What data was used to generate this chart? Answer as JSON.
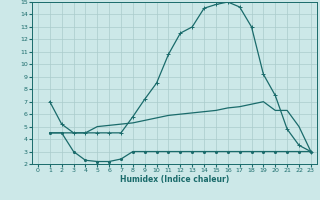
{
  "background_color": "#cce8e8",
  "grid_color": "#aacccc",
  "line_color": "#1a6b6b",
  "xlabel": "Humidex (Indice chaleur)",
  "xlim": [
    -0.5,
    23.5
  ],
  "ylim": [
    2,
    15
  ],
  "xticks": [
    0,
    1,
    2,
    3,
    4,
    5,
    6,
    7,
    8,
    9,
    10,
    11,
    12,
    13,
    14,
    15,
    16,
    17,
    18,
    19,
    20,
    21,
    22,
    23
  ],
  "yticks": [
    2,
    3,
    4,
    5,
    6,
    7,
    8,
    9,
    10,
    11,
    12,
    13,
    14,
    15
  ],
  "line1_x": [
    1,
    2,
    3,
    4,
    5,
    6,
    7,
    8,
    9,
    10,
    11,
    12,
    13,
    14,
    15,
    16,
    17,
    18,
    19,
    20,
    21,
    22,
    23
  ],
  "line1_y": [
    7.0,
    5.2,
    4.5,
    4.5,
    4.5,
    4.5,
    4.5,
    5.8,
    7.2,
    8.5,
    10.8,
    12.5,
    13.0,
    14.5,
    14.8,
    15.0,
    14.6,
    13.0,
    9.2,
    7.5,
    4.8,
    3.5,
    3.0
  ],
  "line2_x": [
    1,
    2,
    3,
    4,
    5,
    6,
    7,
    8,
    9,
    10,
    11,
    12,
    13,
    14,
    15,
    16,
    17,
    18,
    19,
    20,
    21,
    22,
    23
  ],
  "line2_y": [
    4.5,
    4.5,
    3.0,
    2.3,
    2.2,
    2.2,
    2.4,
    3.0,
    3.0,
    3.0,
    3.0,
    3.0,
    3.0,
    3.0,
    3.0,
    3.0,
    3.0,
    3.0,
    3.0,
    3.0,
    3.0,
    3.0,
    3.0
  ],
  "line3_x": [
    1,
    2,
    3,
    4,
    5,
    6,
    7,
    8,
    9,
    10,
    11,
    12,
    13,
    14,
    15,
    16,
    17,
    18,
    19,
    20,
    21,
    22,
    23
  ],
  "line3_y": [
    4.5,
    4.5,
    4.5,
    4.5,
    5.0,
    5.1,
    5.2,
    5.3,
    5.5,
    5.7,
    5.9,
    6.0,
    6.1,
    6.2,
    6.3,
    6.5,
    6.6,
    6.8,
    7.0,
    6.3,
    6.3,
    5.0,
    3.0
  ]
}
